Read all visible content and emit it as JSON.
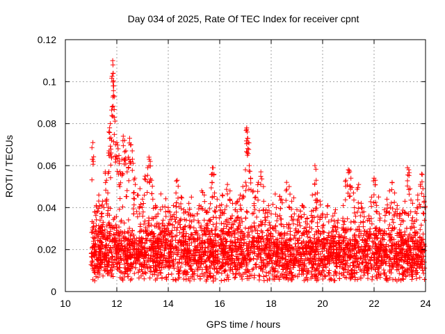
{
  "chart_data": {
    "type": "scatter",
    "title": "Day 034 of 2025, Rate Of TEC Index for receiver cpnt",
    "xlabel": "GPS time / hours",
    "ylabel": "ROTI / TECUs",
    "xlim": [
      10,
      24
    ],
    "ylim": [
      0,
      0.12
    ],
    "xticks": [
      "10",
      "12",
      "14",
      "16",
      "18",
      "20",
      "22",
      "24"
    ],
    "yticks": [
      "0",
      "0.02",
      "0.04",
      "0.06",
      "0.08",
      "0.1",
      "0.12"
    ],
    "grid": true,
    "marker": "plus",
    "color": "#ff0000",
    "series": [
      {
        "name": "ROTI",
        "points": [
          [
            11.05,
            0.063
          ],
          [
            11.07,
            0.071
          ],
          [
            11.1,
            0.031
          ],
          [
            11.15,
            0.038
          ],
          [
            11.2,
            0.041
          ],
          [
            11.3,
            0.046
          ],
          [
            11.35,
            0.034
          ],
          [
            11.4,
            0.037
          ],
          [
            11.45,
            0.043
          ],
          [
            11.5,
            0.04
          ],
          [
            11.55,
            0.057
          ],
          [
            11.6,
            0.053
          ],
          [
            11.65,
            0.047
          ],
          [
            11.7,
            0.067
          ],
          [
            11.72,
            0.078
          ],
          [
            11.75,
            0.08
          ],
          [
            11.78,
            0.066
          ],
          [
            11.8,
            0.072
          ],
          [
            11.82,
            0.088
          ],
          [
            11.84,
            0.11
          ],
          [
            11.85,
            0.108
          ],
          [
            11.86,
            0.104
          ],
          [
            11.88,
            0.098
          ],
          [
            11.9,
            0.083
          ],
          [
            11.95,
            0.07
          ],
          [
            12.0,
            0.071
          ],
          [
            12.05,
            0.068
          ],
          [
            12.1,
            0.061
          ],
          [
            12.15,
            0.056
          ],
          [
            12.2,
            0.063
          ],
          [
            12.25,
            0.074
          ],
          [
            12.3,
            0.072
          ],
          [
            12.35,
            0.067
          ],
          [
            12.4,
            0.057
          ],
          [
            12.45,
            0.064
          ],
          [
            12.5,
            0.073
          ],
          [
            12.55,
            0.07
          ],
          [
            12.6,
            0.067
          ],
          [
            12.65,
            0.047
          ],
          [
            12.7,
            0.054
          ],
          [
            12.8,
            0.046
          ],
          [
            12.9,
            0.049
          ],
          [
            13.0,
            0.044
          ],
          [
            13.1,
            0.055
          ],
          [
            13.2,
            0.059
          ],
          [
            13.25,
            0.064
          ],
          [
            13.3,
            0.062
          ],
          [
            13.35,
            0.053
          ],
          [
            13.4,
            0.044
          ],
          [
            13.5,
            0.041
          ],
          [
            13.6,
            0.037
          ],
          [
            13.7,
            0.039
          ],
          [
            13.8,
            0.034
          ],
          [
            13.9,
            0.038
          ],
          [
            14.0,
            0.04
          ],
          [
            14.1,
            0.036
          ],
          [
            14.2,
            0.041
          ],
          [
            14.3,
            0.047
          ],
          [
            14.35,
            0.053
          ],
          [
            14.5,
            0.045
          ],
          [
            14.6,
            0.039
          ],
          [
            14.7,
            0.034
          ],
          [
            14.8,
            0.042
          ],
          [
            14.9,
            0.045
          ],
          [
            15.0,
            0.036
          ],
          [
            15.2,
            0.041
          ],
          [
            15.3,
            0.048
          ],
          [
            15.4,
            0.046
          ],
          [
            15.5,
            0.038
          ],
          [
            15.6,
            0.034
          ],
          [
            15.7,
            0.052
          ],
          [
            15.72,
            0.056
          ],
          [
            15.75,
            0.059
          ],
          [
            15.8,
            0.047
          ],
          [
            15.9,
            0.044
          ],
          [
            16.0,
            0.041
          ],
          [
            16.1,
            0.046
          ],
          [
            16.2,
            0.039
          ],
          [
            16.3,
            0.051
          ],
          [
            16.4,
            0.048
          ],
          [
            16.5,
            0.042
          ],
          [
            16.6,
            0.039
          ],
          [
            16.7,
            0.043
          ],
          [
            16.8,
            0.046
          ],
          [
            16.9,
            0.05
          ],
          [
            17.0,
            0.058
          ],
          [
            17.05,
            0.078
          ],
          [
            17.07,
            0.076
          ],
          [
            17.08,
            0.073
          ],
          [
            17.1,
            0.071
          ],
          [
            17.15,
            0.06
          ],
          [
            17.2,
            0.054
          ],
          [
            17.3,
            0.048
          ],
          [
            17.4,
            0.045
          ],
          [
            17.5,
            0.052
          ],
          [
            17.6,
            0.057
          ],
          [
            17.7,
            0.05
          ],
          [
            17.8,
            0.039
          ],
          [
            17.9,
            0.041
          ],
          [
            18.0,
            0.037
          ],
          [
            18.2,
            0.04
          ],
          [
            18.4,
            0.044
          ],
          [
            18.6,
            0.052
          ],
          [
            18.7,
            0.05
          ],
          [
            18.8,
            0.043
          ],
          [
            18.9,
            0.037
          ],
          [
            19.0,
            0.039
          ],
          [
            19.2,
            0.041
          ],
          [
            19.4,
            0.035
          ],
          [
            19.6,
            0.046
          ],
          [
            19.7,
            0.06
          ],
          [
            19.75,
            0.053
          ],
          [
            19.8,
            0.047
          ],
          [
            19.9,
            0.043
          ],
          [
            20.0,
            0.037
          ],
          [
            20.2,
            0.041
          ],
          [
            20.4,
            0.036
          ],
          [
            20.5,
            0.039
          ],
          [
            20.6,
            0.034
          ],
          [
            20.8,
            0.041
          ],
          [
            20.9,
            0.053
          ],
          [
            21.0,
            0.058
          ],
          [
            21.05,
            0.057
          ],
          [
            21.1,
            0.054
          ],
          [
            21.2,
            0.047
          ],
          [
            21.4,
            0.051
          ],
          [
            21.5,
            0.042
          ],
          [
            21.6,
            0.038
          ],
          [
            21.8,
            0.036
          ],
          [
            21.9,
            0.045
          ],
          [
            22.0,
            0.054
          ],
          [
            22.05,
            0.053
          ],
          [
            22.1,
            0.041
          ],
          [
            22.2,
            0.037
          ],
          [
            22.4,
            0.039
          ],
          [
            22.5,
            0.044
          ],
          [
            22.6,
            0.048
          ],
          [
            22.7,
            0.052
          ],
          [
            22.8,
            0.047
          ],
          [
            22.9,
            0.041
          ],
          [
            23.0,
            0.037
          ],
          [
            23.2,
            0.043
          ],
          [
            23.3,
            0.059
          ],
          [
            23.35,
            0.058
          ],
          [
            23.4,
            0.049
          ],
          [
            23.5,
            0.042
          ],
          [
            23.6,
            0.038
          ],
          [
            23.7,
            0.046
          ],
          [
            23.8,
            0.051
          ],
          [
            23.85,
            0.056
          ],
          [
            23.9,
            0.049
          ],
          [
            23.95,
            0.043
          ]
        ],
        "band": {
          "x_range": [
            11.0,
            23.98
          ],
          "baseline": 0.018,
          "spread": 0.012,
          "min": 0.005,
          "count": 3600
        }
      }
    ]
  }
}
